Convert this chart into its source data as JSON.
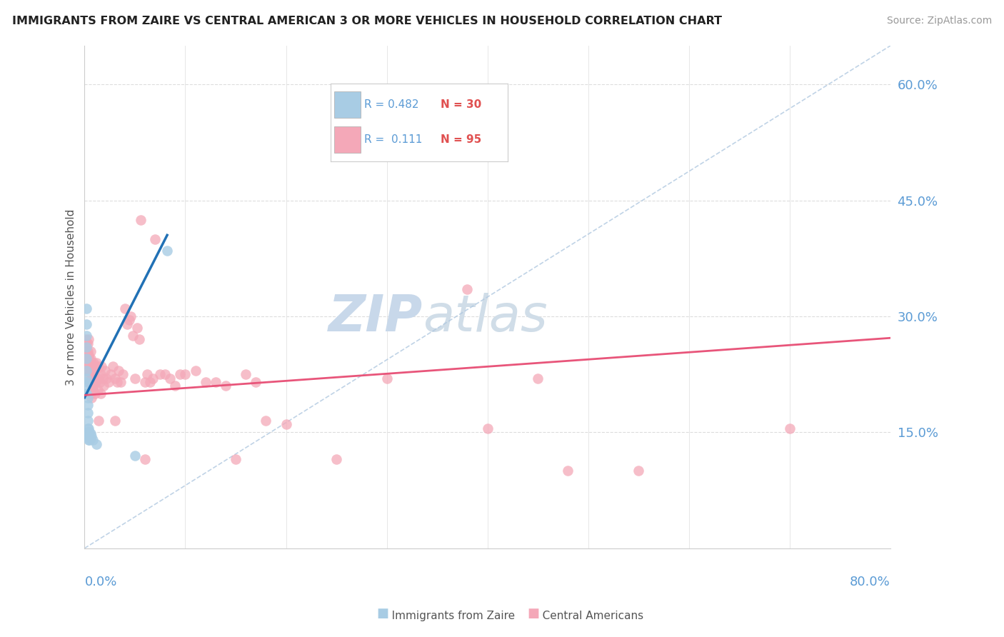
{
  "title": "IMMIGRANTS FROM ZAIRE VS CENTRAL AMERICAN 3 OR MORE VEHICLES IN HOUSEHOLD CORRELATION CHART",
  "source": "Source: ZipAtlas.com",
  "ylabel": "3 or more Vehicles in Household",
  "xmin": 0.0,
  "xmax": 0.8,
  "ymin": 0.0,
  "ymax": 0.65,
  "color_blue": "#a8cce4",
  "color_pink": "#f4a8b8",
  "color_blue_line": "#2171b5",
  "color_pink_line": "#e8557a",
  "color_diag_line": "#b0c8e0",
  "watermark_color": "#c8d8ea",
  "blue_line_x": [
    0.0,
    0.082
  ],
  "blue_line_y": [
    0.195,
    0.405
  ],
  "pink_line_x": [
    0.0,
    0.8
  ],
  "pink_line_y": [
    0.198,
    0.272
  ],
  "blue_points": [
    [
      0.001,
      0.215
    ],
    [
      0.001,
      0.21
    ],
    [
      0.001,
      0.2
    ],
    [
      0.002,
      0.31
    ],
    [
      0.002,
      0.29
    ],
    [
      0.002,
      0.275
    ],
    [
      0.002,
      0.26
    ],
    [
      0.002,
      0.245
    ],
    [
      0.002,
      0.23
    ],
    [
      0.002,
      0.22
    ],
    [
      0.002,
      0.2
    ],
    [
      0.003,
      0.195
    ],
    [
      0.003,
      0.185
    ],
    [
      0.003,
      0.175
    ],
    [
      0.003,
      0.165
    ],
    [
      0.003,
      0.155
    ],
    [
      0.003,
      0.15
    ],
    [
      0.004,
      0.155
    ],
    [
      0.004,
      0.145
    ],
    [
      0.004,
      0.14
    ],
    [
      0.005,
      0.15
    ],
    [
      0.005,
      0.145
    ],
    [
      0.005,
      0.14
    ],
    [
      0.006,
      0.148
    ],
    [
      0.006,
      0.142
    ],
    [
      0.007,
      0.145
    ],
    [
      0.008,
      0.14
    ],
    [
      0.082,
      0.385
    ],
    [
      0.05,
      0.12
    ],
    [
      0.012,
      0.135
    ]
  ],
  "pink_points": [
    [
      0.001,
      0.27
    ],
    [
      0.002,
      0.265
    ],
    [
      0.002,
      0.255
    ],
    [
      0.002,
      0.25
    ],
    [
      0.003,
      0.265
    ],
    [
      0.003,
      0.255
    ],
    [
      0.003,
      0.245
    ],
    [
      0.003,
      0.235
    ],
    [
      0.004,
      0.27
    ],
    [
      0.004,
      0.25
    ],
    [
      0.004,
      0.24
    ],
    [
      0.004,
      0.23
    ],
    [
      0.005,
      0.245
    ],
    [
      0.005,
      0.235
    ],
    [
      0.005,
      0.225
    ],
    [
      0.005,
      0.215
    ],
    [
      0.006,
      0.255
    ],
    [
      0.006,
      0.245
    ],
    [
      0.006,
      0.23
    ],
    [
      0.006,
      0.215
    ],
    [
      0.006,
      0.2
    ],
    [
      0.007,
      0.24
    ],
    [
      0.007,
      0.225
    ],
    [
      0.007,
      0.21
    ],
    [
      0.007,
      0.195
    ],
    [
      0.008,
      0.235
    ],
    [
      0.008,
      0.22
    ],
    [
      0.008,
      0.205
    ],
    [
      0.009,
      0.24
    ],
    [
      0.009,
      0.225
    ],
    [
      0.009,
      0.21
    ],
    [
      0.01,
      0.235
    ],
    [
      0.01,
      0.215
    ],
    [
      0.01,
      0.2
    ],
    [
      0.011,
      0.23
    ],
    [
      0.011,
      0.215
    ],
    [
      0.012,
      0.24
    ],
    [
      0.013,
      0.22
    ],
    [
      0.013,
      0.205
    ],
    [
      0.014,
      0.165
    ],
    [
      0.014,
      0.235
    ],
    [
      0.015,
      0.215
    ],
    [
      0.016,
      0.225
    ],
    [
      0.016,
      0.2
    ],
    [
      0.017,
      0.235
    ],
    [
      0.018,
      0.22
    ],
    [
      0.019,
      0.21
    ],
    [
      0.02,
      0.23
    ],
    [
      0.022,
      0.22
    ],
    [
      0.024,
      0.215
    ],
    [
      0.026,
      0.225
    ],
    [
      0.028,
      0.235
    ],
    [
      0.03,
      0.22
    ],
    [
      0.03,
      0.165
    ],
    [
      0.032,
      0.215
    ],
    [
      0.034,
      0.23
    ],
    [
      0.036,
      0.215
    ],
    [
      0.038,
      0.225
    ],
    [
      0.04,
      0.31
    ],
    [
      0.042,
      0.29
    ],
    [
      0.044,
      0.295
    ],
    [
      0.046,
      0.3
    ],
    [
      0.048,
      0.275
    ],
    [
      0.05,
      0.22
    ],
    [
      0.052,
      0.285
    ],
    [
      0.054,
      0.27
    ],
    [
      0.056,
      0.425
    ],
    [
      0.06,
      0.215
    ],
    [
      0.06,
      0.115
    ],
    [
      0.062,
      0.225
    ],
    [
      0.065,
      0.215
    ],
    [
      0.068,
      0.22
    ],
    [
      0.07,
      0.4
    ],
    [
      0.075,
      0.225
    ],
    [
      0.08,
      0.225
    ],
    [
      0.085,
      0.22
    ],
    [
      0.09,
      0.21
    ],
    [
      0.095,
      0.225
    ],
    [
      0.1,
      0.225
    ],
    [
      0.11,
      0.23
    ],
    [
      0.12,
      0.215
    ],
    [
      0.13,
      0.215
    ],
    [
      0.14,
      0.21
    ],
    [
      0.15,
      0.115
    ],
    [
      0.16,
      0.225
    ],
    [
      0.17,
      0.215
    ],
    [
      0.18,
      0.165
    ],
    [
      0.2,
      0.16
    ],
    [
      0.25,
      0.115
    ],
    [
      0.3,
      0.22
    ],
    [
      0.38,
      0.335
    ],
    [
      0.4,
      0.155
    ],
    [
      0.45,
      0.22
    ],
    [
      0.48,
      0.1
    ],
    [
      0.55,
      0.1
    ],
    [
      0.7,
      0.155
    ]
  ]
}
